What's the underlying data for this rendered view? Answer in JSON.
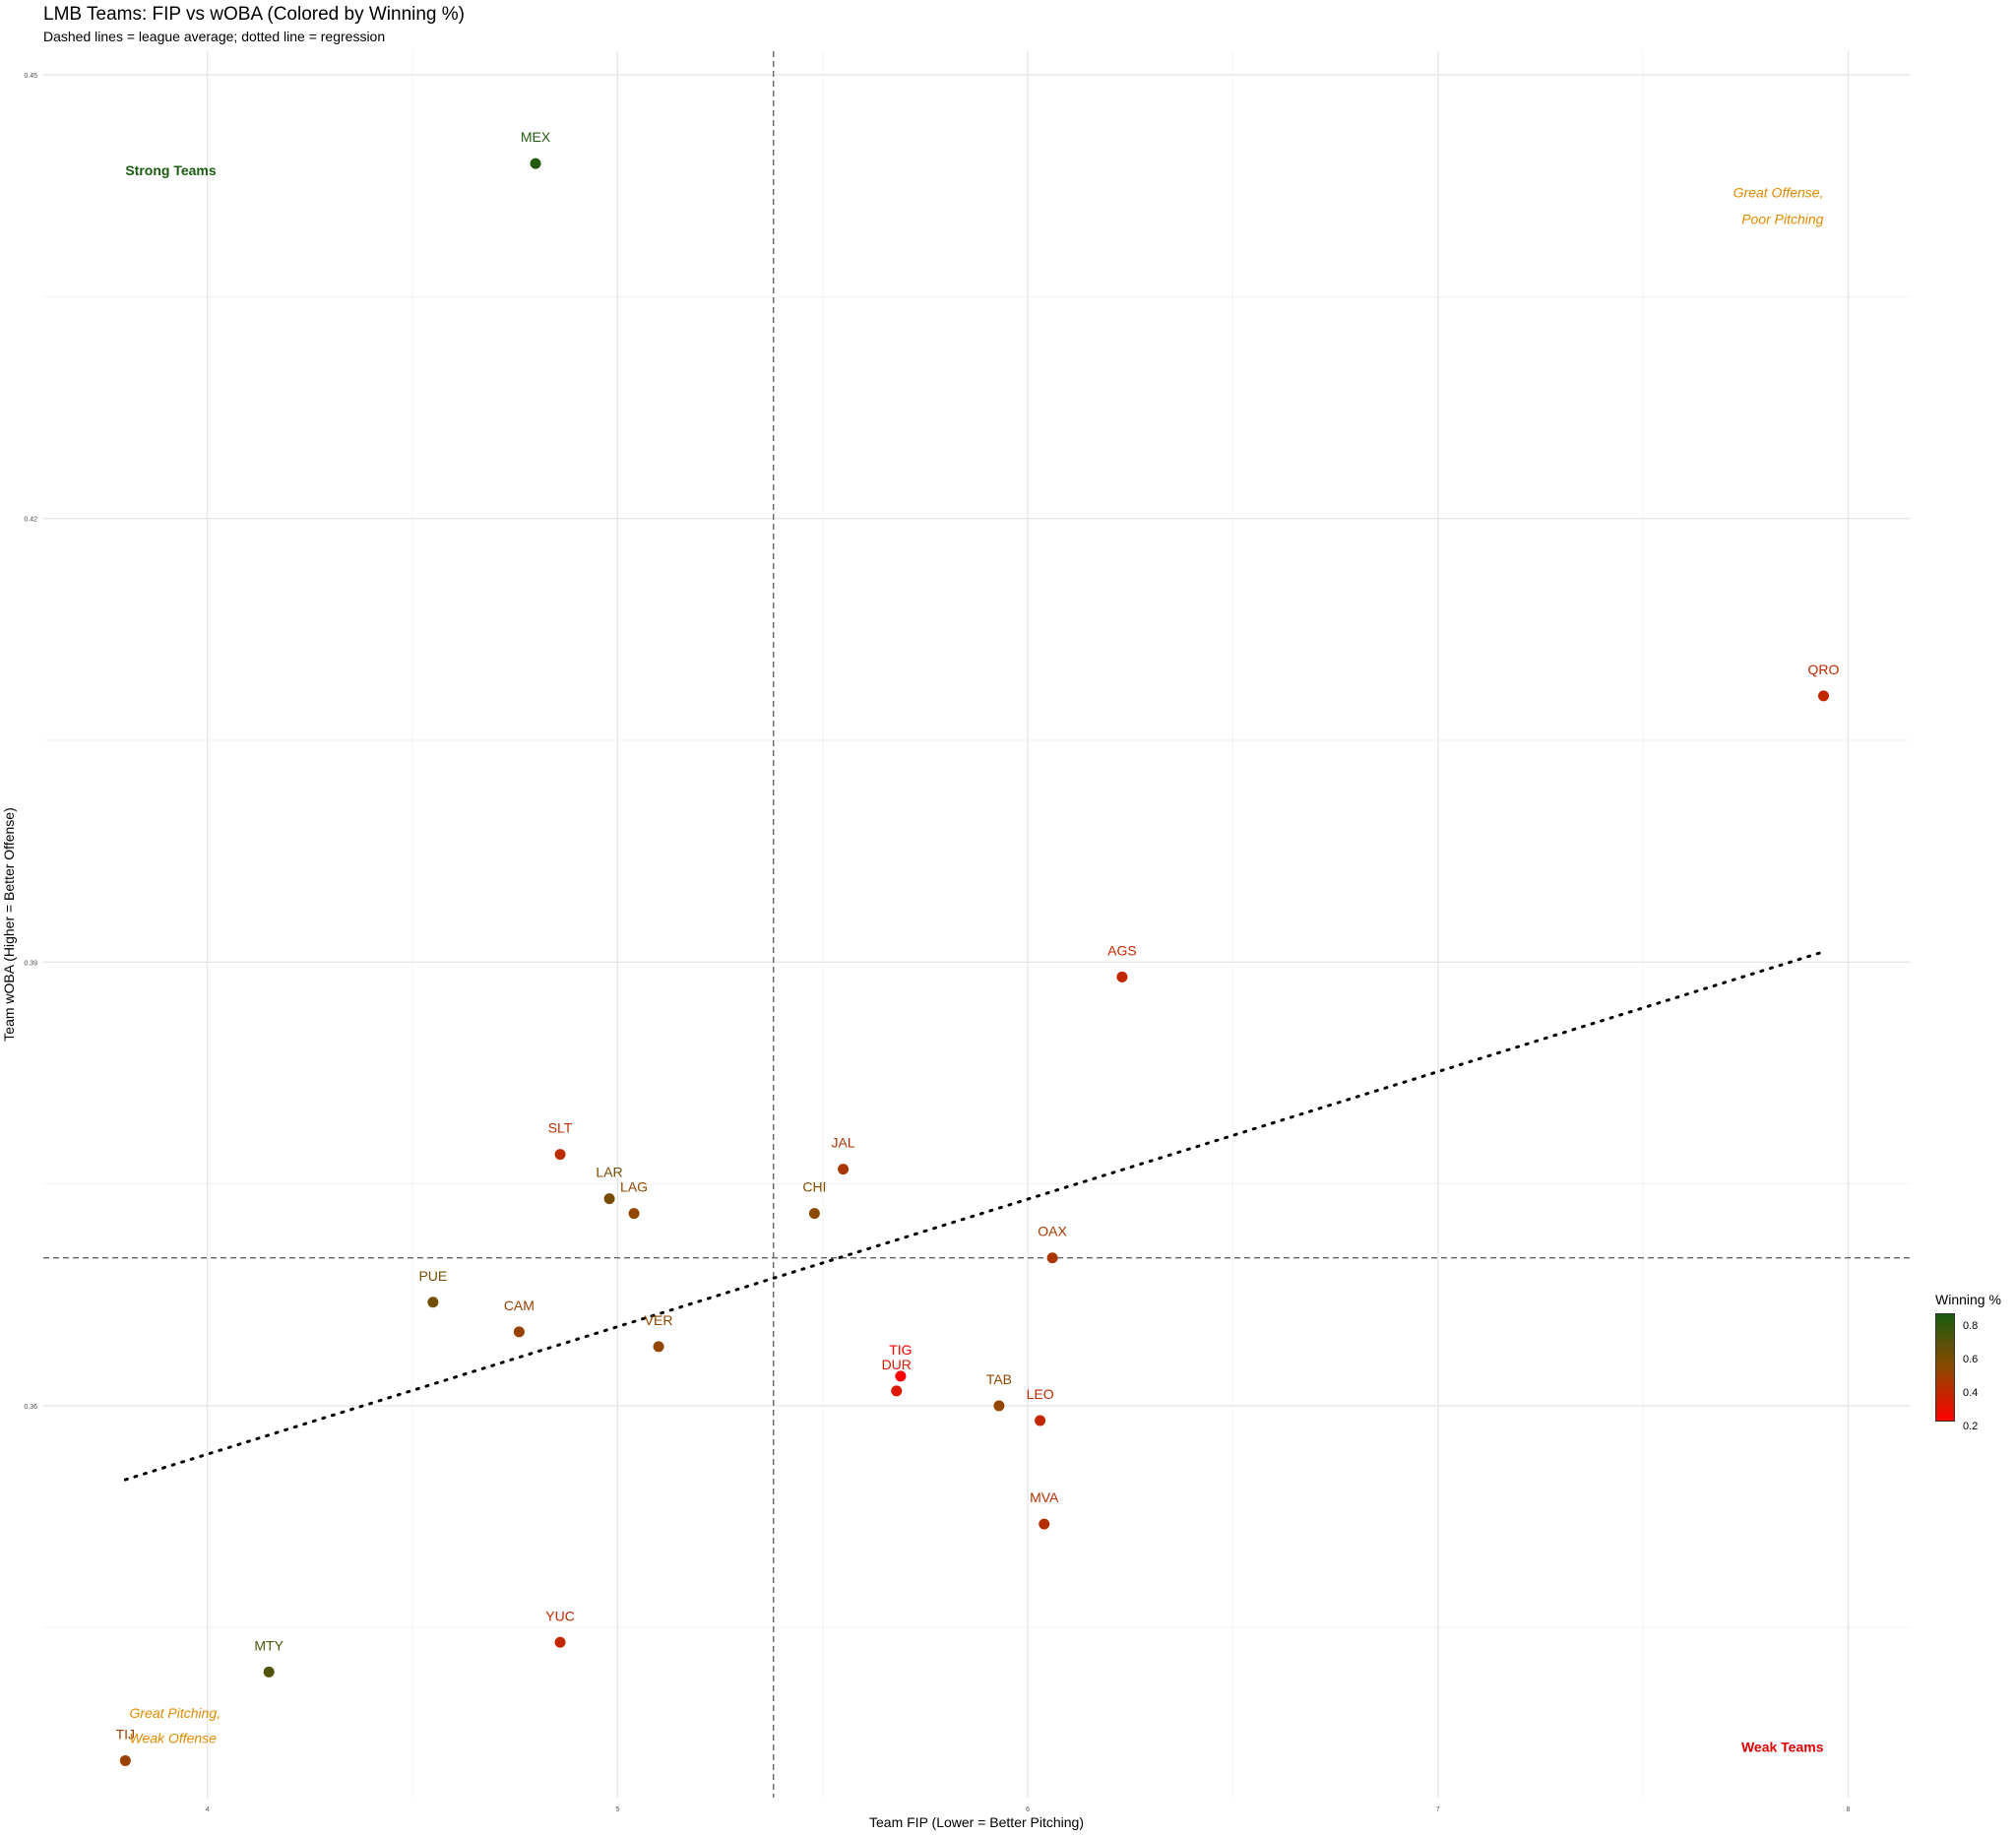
{
  "chart_data": {
    "type": "scatter",
    "title": "LMB Teams: FIP vs wOBA (Colored by Winning %)",
    "subtitle": "Dashed lines = league average; dotted line = regression",
    "xlabel": "Team FIP (Lower = Better Pitching)",
    "ylabel": "Team wOBA (Higher = Better Offense)",
    "xlim": [
      3.6,
      8.15
    ],
    "ylim": [
      0.3335,
      0.4516
    ],
    "xticks": [
      4,
      5,
      6,
      7,
      8
    ],
    "yticks": [
      0.36,
      0.39,
      0.42,
      0.45
    ],
    "grid": true,
    "points": [
      {
        "label": "MEX",
        "x": 4.8,
        "y": 0.444,
        "win_pct": 0.85
      },
      {
        "label": "QRO",
        "x": 7.94,
        "y": 0.408,
        "win_pct": 0.38
      },
      {
        "label": "AGS",
        "x": 6.23,
        "y": 0.389,
        "win_pct": 0.38
      },
      {
        "label": "SLT",
        "x": 4.86,
        "y": 0.377,
        "win_pct": 0.4
      },
      {
        "label": "JAL",
        "x": 5.55,
        "y": 0.376,
        "win_pct": 0.45
      },
      {
        "label": "LAR",
        "x": 4.98,
        "y": 0.374,
        "win_pct": 0.6
      },
      {
        "label": "LAG",
        "x": 5.04,
        "y": 0.373,
        "win_pct": 0.52
      },
      {
        "label": "CHI",
        "x": 5.48,
        "y": 0.373,
        "win_pct": 0.55
      },
      {
        "label": "OAX",
        "x": 6.06,
        "y": 0.37,
        "win_pct": 0.45
      },
      {
        "label": "PUE",
        "x": 4.55,
        "y": 0.367,
        "win_pct": 0.62
      },
      {
        "label": "CAM",
        "x": 4.76,
        "y": 0.365,
        "win_pct": 0.5
      },
      {
        "label": "VER",
        "x": 5.1,
        "y": 0.364,
        "win_pct": 0.52
      },
      {
        "label": "TIG",
        "x": 5.69,
        "y": 0.362,
        "win_pct": 0.2
      },
      {
        "label": "DUR",
        "x": 5.68,
        "y": 0.361,
        "win_pct": 0.3
      },
      {
        "label": "TAB",
        "x": 5.93,
        "y": 0.36,
        "win_pct": 0.52
      },
      {
        "label": "LEO",
        "x": 6.03,
        "y": 0.359,
        "win_pct": 0.38
      },
      {
        "label": "MVA",
        "x": 6.04,
        "y": 0.352,
        "win_pct": 0.42
      },
      {
        "label": "YUC",
        "x": 4.86,
        "y": 0.344,
        "win_pct": 0.38
      },
      {
        "label": "MTY",
        "x": 4.15,
        "y": 0.342,
        "win_pct": 0.72
      },
      {
        "label": "TIJ",
        "x": 3.8,
        "y": 0.336,
        "win_pct": 0.5
      }
    ],
    "reference_lines": {
      "avg_fip": 5.38,
      "avg_woba": 0.37,
      "regression": {
        "x": [
          3.8,
          7.94
        ],
        "y": [
          0.355,
          0.3907
        ]
      }
    },
    "annotations": [
      {
        "text": "Strong Teams",
        "x": 3.8,
        "y": 0.4432,
        "color": "#1a5c10",
        "style": "bold",
        "align": "left"
      },
      {
        "text": "Great Offense,",
        "x": 7.94,
        "y": 0.4417,
        "color": "#e08a00",
        "style": "italic",
        "align": "right"
      },
      {
        "text": "Poor Pitching",
        "x": 7.94,
        "y": 0.4399,
        "color": "#e08a00",
        "style": "italic",
        "align": "right"
      },
      {
        "text": "Great Pitching,",
        "x": 3.81,
        "y": 0.3389,
        "color": "#e08a00",
        "style": "italic",
        "align": "left"
      },
      {
        "text": "Weak Offense",
        "x": 3.81,
        "y": 0.3372,
        "color": "#e08a00",
        "style": "italic",
        "align": "left"
      },
      {
        "text": "Weak Teams",
        "x": 7.94,
        "y": 0.3366,
        "color": "#e00000",
        "style": "bold",
        "align": "right"
      }
    ],
    "color_scale": {
      "title": "Winning %",
      "low_color": "#ff0000",
      "mid_color": "#8b4a00",
      "high_color": "#1a5c10",
      "range": [
        0.2,
        0.88
      ],
      "ticks": [
        "0.8",
        "0.6",
        "0.4",
        "0.2"
      ],
      "tick_values": [
        0.8,
        0.6,
        0.4,
        0.2
      ]
    }
  }
}
